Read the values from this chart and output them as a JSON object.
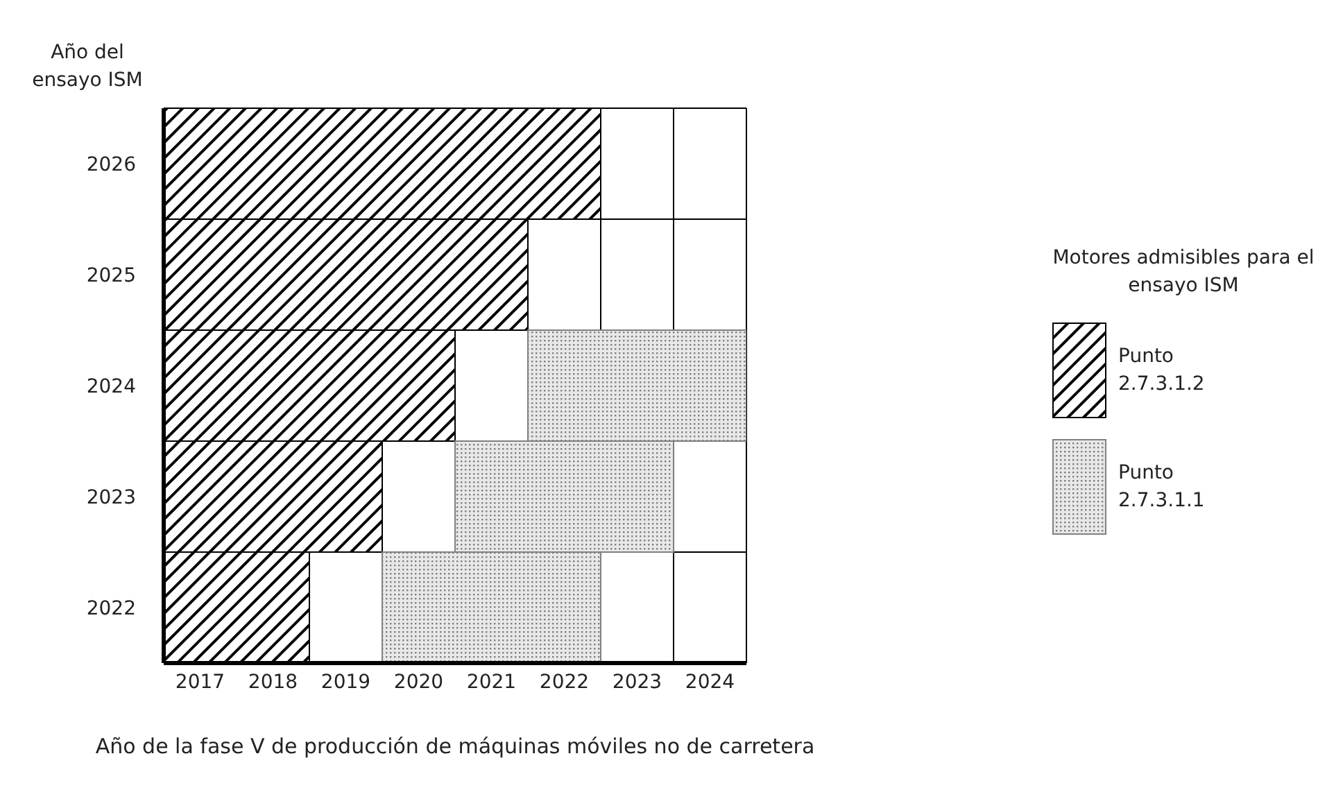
{
  "chart_data": {
    "type": "bar",
    "orientation": "horizontal",
    "ylabel": "Año del ensayo ISM",
    "xlabel": "Año de la fase V de producción de máquinas móviles no de carretera",
    "legend_title": "Motores admisibles para el ensayo ISM",
    "legend": "right",
    "grid": true,
    "categories": [
      "2026",
      "2025",
      "2024",
      "2023",
      "2022"
    ],
    "xlim": [
      2016.5,
      2024.5
    ],
    "xticks": [
      2017,
      2018,
      2019,
      2020,
      2021,
      2022,
      2023,
      2024
    ],
    "series": [
      {
        "name": "Punto 2.7.3.1.2",
        "color": "#000000",
        "base": [
          2016.5,
          2016.5,
          2016.5,
          2016.5,
          2016.5
        ],
        "values": [
          6,
          5,
          4,
          3,
          2
        ]
      },
      {
        "name": "Punto 2.7.3.1.1",
        "color": "#808080",
        "base": [
          null,
          null,
          2021.5,
          2020.5,
          2019.5
        ],
        "values": [
          null,
          null,
          3,
          3,
          3
        ]
      }
    ]
  }
}
